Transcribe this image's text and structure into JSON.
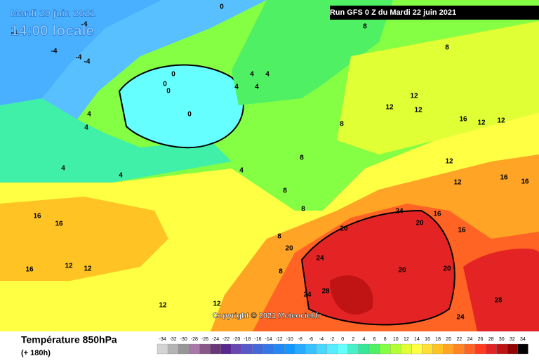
{
  "header": {
    "date": "Mardi 29 juin 2021",
    "time": "14:00 locale",
    "run": "Run GFS 0 Z du Mardi 22 juin 2021",
    "copyright": "Copyright © 2021 Meteociel.fr"
  },
  "legend": {
    "title": "Température 850hPa",
    "subtitle": "(+ 180h)",
    "ticks": [
      -34,
      -32,
      -30,
      -28,
      -26,
      -24,
      -22,
      -20,
      -18,
      -16,
      -14,
      -12,
      -10,
      -8,
      -6,
      -4,
      -2,
      0,
      2,
      4,
      6,
      8,
      10,
      12,
      14,
      16,
      18,
      20,
      22,
      24,
      26,
      28,
      30,
      32,
      34
    ],
    "colors": [
      "#d4d4d4",
      "#b4b4b4",
      "#969696",
      "#a878a8",
      "#885888",
      "#683878",
      "#582890",
      "#6848b0",
      "#5858c8",
      "#4468d8",
      "#3478e8",
      "#2488f4",
      "#1498ff",
      "#28aaff",
      "#38c0ff",
      "#48d8ff",
      "#58ecff",
      "#66ffff",
      "#48f0c8",
      "#34e898",
      "#50f064",
      "#84ff44",
      "#b4ff34",
      "#e0ff34",
      "#ffff44",
      "#ffe034",
      "#ffc424",
      "#ffa424",
      "#ff8424",
      "#ff6424",
      "#ff3c20",
      "#e42424",
      "#c01414",
      "#900404",
      "#000000"
    ]
  },
  "map": {
    "contour_labels": [
      "0",
      "-4",
      "-4",
      "-4",
      "-4",
      "-4",
      "0",
      "0",
      "0",
      "0",
      "4",
      "4",
      "4",
      "4",
      "4",
      "4",
      "4",
      "4",
      "4",
      "8",
      "8",
      "8",
      "8",
      "8",
      "8",
      "8",
      "8",
      "12",
      "12",
      "12",
      "12",
      "12",
      "12",
      "12",
      "12",
      "12",
      "12",
      "12",
      "16",
      "16",
      "16",
      "16",
      "16",
      "16",
      "16",
      "16",
      "20",
      "20",
      "20",
      "20",
      "20",
      "24",
      "24",
      "24",
      "24",
      "28",
      "28"
    ]
  }
}
